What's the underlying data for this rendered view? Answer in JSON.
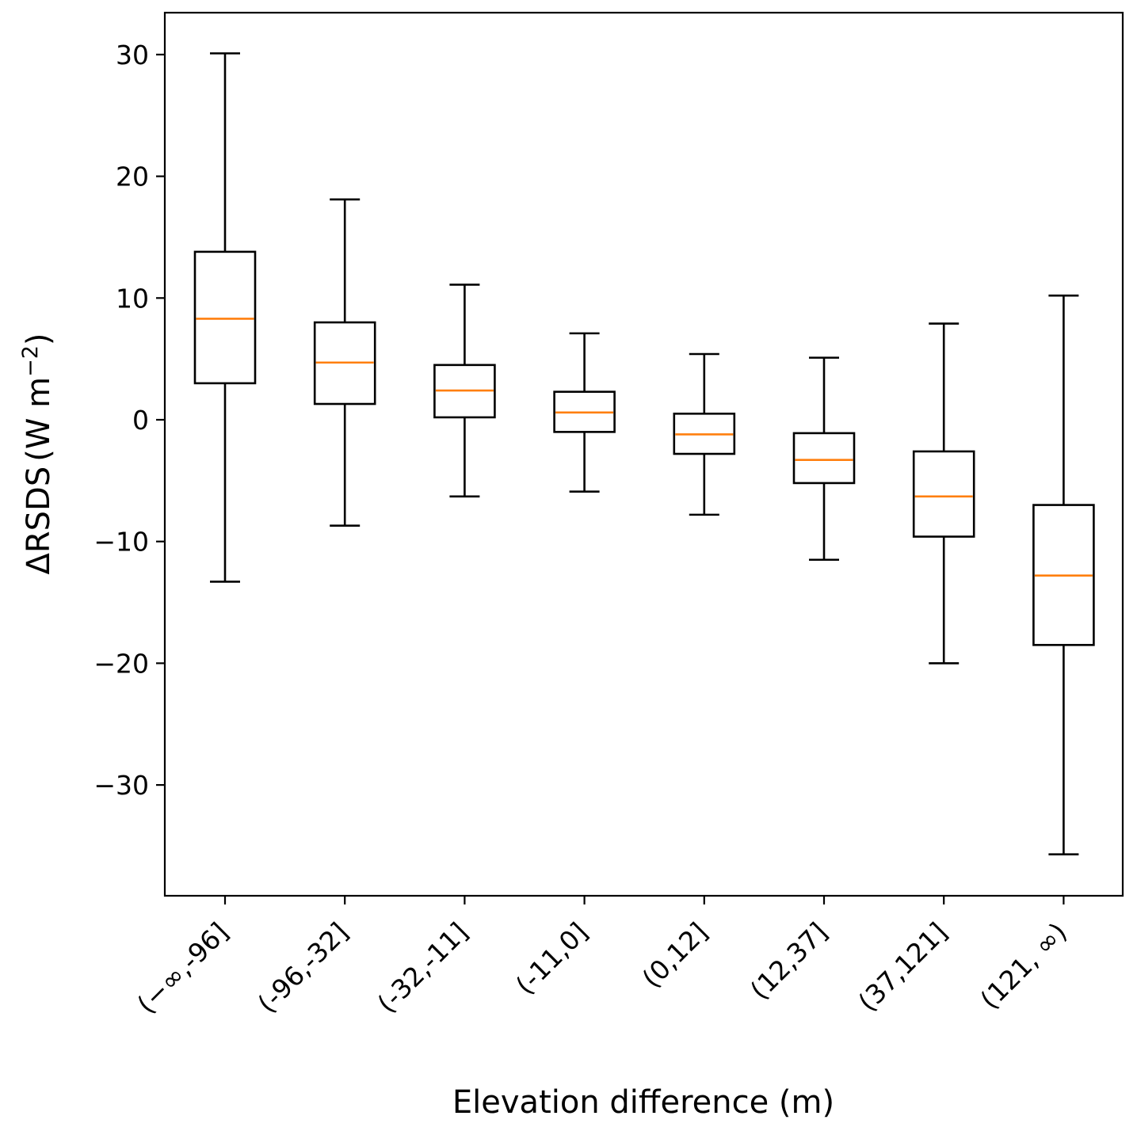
{
  "chart_data": {
    "type": "boxplot",
    "title": "",
    "xlabel": "Elevation difference (m)",
    "ylabel": "ΔRSDS (W m⁻²)",
    "ylabel_parts": {
      "base": "ΔRSDS",
      "unit_open": "(W m",
      "unit_exp": "−2",
      "unit_close": ")"
    },
    "categories": [
      "(−∞,-96]",
      "(-96,-32]",
      "(-32,-11]",
      "(-11,0]",
      "(0,12]",
      "(12,37]",
      "(37,121]",
      "(121, ∞)"
    ],
    "boxes": [
      {
        "whislo": -13.3,
        "q1": 3.0,
        "med": 8.3,
        "q3": 13.8,
        "whishi": 30.1
      },
      {
        "whislo": -8.7,
        "q1": 1.3,
        "med": 4.7,
        "q3": 8.0,
        "whishi": 18.1
      },
      {
        "whislo": -6.3,
        "q1": 0.2,
        "med": 2.4,
        "q3": 4.5,
        "whishi": 11.1
      },
      {
        "whislo": -5.9,
        "q1": -1.0,
        "med": 0.6,
        "q3": 2.3,
        "whishi": 7.1
      },
      {
        "whislo": -7.8,
        "q1": -2.8,
        "med": -1.2,
        "q3": 0.5,
        "whishi": 5.4
      },
      {
        "whislo": -11.5,
        "q1": -5.2,
        "med": -3.3,
        "q3": -1.1,
        "whishi": 5.1
      },
      {
        "whislo": -20.0,
        "q1": -9.6,
        "med": -6.3,
        "q3": -2.6,
        "whishi": 7.9
      },
      {
        "whislo": -35.7,
        "q1": -18.5,
        "med": -12.8,
        "q3": -7.0,
        "whishi": 10.2
      }
    ],
    "yticks": [
      30,
      20,
      10,
      0,
      -10,
      -20,
      -30
    ],
    "ytick_labels": [
      "30",
      "20",
      "10",
      "0",
      "−10",
      "−20",
      "−30"
    ],
    "ylim": [
      -39.0,
      33.5
    ],
    "grid": false,
    "colors": {
      "box": "#000000",
      "median": "#ff7f0e"
    }
  }
}
